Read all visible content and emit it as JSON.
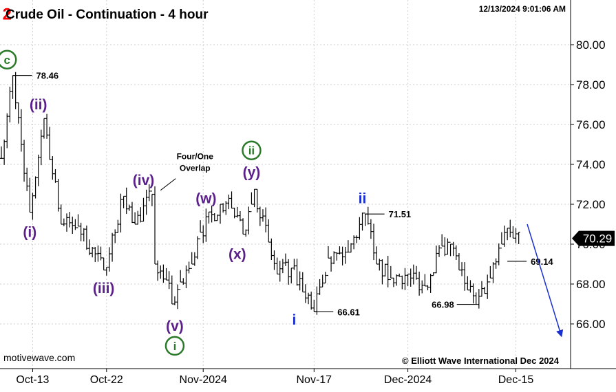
{
  "chart_data": {
    "type": "ohlc",
    "title": "Crude Oil - Continuation - 4 hour",
    "timestamp": "12/13/2024 9:01:06 AM",
    "watermark": "motivewave.com",
    "copyright": "© Elliott Wave International Dec 2024",
    "ylim": [
      64.2,
      81.6
    ],
    "grid": true,
    "y_ticks": [
      66,
      68,
      70,
      72,
      74,
      76,
      78,
      80
    ],
    "y_tick_labels": [
      "66.00",
      "68.00",
      "70.00",
      "72.00",
      "74.00",
      "76.00",
      "78.00",
      "80.00"
    ],
    "x_ticks": [
      {
        "label": "Oct-13",
        "bar": 11
      },
      {
        "label": "Oct-22",
        "bar": 37
      },
      {
        "label": "Nov-2024",
        "bar": 71
      },
      {
        "label": "Nov-17",
        "bar": 110
      },
      {
        "label": "Dec-2024",
        "bar": 143
      },
      {
        "label": "Dec-15",
        "bar": 181
      }
    ],
    "last_price": "70.29",
    "last_price_value": 70.29,
    "colors": {
      "bars": "#000000",
      "primary_wave": "#2a7a2a",
      "minor_wave": "#5a1f8a",
      "minute_wave": "#1a2fd0",
      "degree_two": "#ff0000",
      "forecast_arrow": "#1a2fd0"
    },
    "anchors": [
      {
        "bar": 0,
        "price": 74.3
      },
      {
        "bar": 4,
        "price": 78.46
      },
      {
        "bar": 10,
        "price": 71.6
      },
      {
        "bar": 15,
        "price": 76.3
      },
      {
        "bar": 21,
        "price": 71.0
      },
      {
        "bar": 27,
        "price": 70.9
      },
      {
        "bar": 36,
        "price": 68.7
      },
      {
        "bar": 43,
        "price": 72.4
      },
      {
        "bar": 47,
        "price": 71.0
      },
      {
        "bar": 53,
        "price": 72.5
      },
      {
        "bar": 54,
        "price": 69.0
      },
      {
        "bar": 58,
        "price": 68.2
      },
      {
        "bar": 60,
        "price": 67.0
      },
      {
        "bar": 63,
        "price": 68.1
      },
      {
        "bar": 67,
        "price": 69.0
      },
      {
        "bar": 70,
        "price": 70.6
      },
      {
        "bar": 77,
        "price": 72.0
      },
      {
        "bar": 81,
        "price": 71.8
      },
      {
        "bar": 85,
        "price": 70.5
      },
      {
        "bar": 88,
        "price": 72.0
      },
      {
        "bar": 89,
        "price": 72.75
      },
      {
        "bar": 94,
        "price": 70.1
      },
      {
        "bar": 97,
        "price": 68.5
      },
      {
        "bar": 102,
        "price": 68.8
      },
      {
        "bar": 106,
        "price": 67.6
      },
      {
        "bar": 110,
        "price": 66.61
      },
      {
        "bar": 115,
        "price": 69.3
      },
      {
        "bar": 122,
        "price": 69.6
      },
      {
        "bar": 128,
        "price": 71.51
      },
      {
        "bar": 132,
        "price": 69.0
      },
      {
        "bar": 137,
        "price": 68.3
      },
      {
        "bar": 143,
        "price": 68.5
      },
      {
        "bar": 149,
        "price": 67.9
      },
      {
        "bar": 155,
        "price": 69.9
      },
      {
        "bar": 158,
        "price": 70.0
      },
      {
        "bar": 161,
        "price": 68.7
      },
      {
        "bar": 164,
        "price": 67.7
      },
      {
        "bar": 167,
        "price": 66.98
      },
      {
        "bar": 172,
        "price": 68.3
      },
      {
        "bar": 176,
        "price": 70.0
      },
      {
        "bar": 178,
        "price": 70.8
      },
      {
        "bar": 180,
        "price": 70.3
      },
      {
        "bar": 182,
        "price": 70.6
      }
    ],
    "gaps": [
      {
        "after_bar": 55
      }
    ],
    "wave_labels": [
      {
        "text": "2",
        "style": "plain",
        "color": "degree_two",
        "bar": 2,
        "price": 81.5,
        "dx": 0,
        "dy": 0
      },
      {
        "text": "c",
        "style": "circle",
        "color": "primary_wave",
        "bar": 2,
        "price": 79.25,
        "dx": 0,
        "dy": 0
      },
      {
        "text": "(ii)",
        "style": "plain",
        "color": "minor_wave",
        "bar": 13,
        "price": 77.0,
        "dx": 0,
        "dy": 0
      },
      {
        "text": "(i)",
        "style": "plain",
        "color": "minor_wave",
        "bar": 10,
        "price": 70.6,
        "dx": 0,
        "dy": 0
      },
      {
        "text": "(iii)",
        "style": "plain",
        "color": "minor_wave",
        "bar": 36,
        "price": 67.8,
        "dx": 0,
        "dy": 0
      },
      {
        "text": "(iv)",
        "style": "plain",
        "color": "minor_wave",
        "bar": 50,
        "price": 73.2,
        "dx": 0,
        "dy": 0
      },
      {
        "text": "(v)",
        "style": "plain",
        "color": "minor_wave",
        "bar": 61,
        "price": 65.9,
        "dx": 0,
        "dy": 0
      },
      {
        "text": "i",
        "style": "circle",
        "color": "primary_wave",
        "bar": 61,
        "price": 64.9,
        "dx": 0,
        "dy": 0
      },
      {
        "text": "(w)",
        "style": "plain",
        "color": "minor_wave",
        "bar": 72,
        "price": 72.3,
        "dx": 0,
        "dy": 0
      },
      {
        "text": "(x)",
        "style": "plain",
        "color": "minor_wave",
        "bar": 83,
        "price": 69.5,
        "dx": 0,
        "dy": 0
      },
      {
        "text": "(y)",
        "style": "plain",
        "color": "minor_wave",
        "bar": 88,
        "price": 73.6,
        "dx": 0,
        "dy": 0
      },
      {
        "text": "ii",
        "style": "circle",
        "color": "primary_wave",
        "bar": 88,
        "price": 74.7,
        "dx": 0,
        "dy": 0
      },
      {
        "text": "i",
        "style": "plain",
        "color": "minute_wave",
        "bar": 103,
        "price": 66.2,
        "dx": 0,
        "dy": 0
      },
      {
        "text": "ii",
        "style": "plain",
        "color": "minute_wave",
        "bar": 127,
        "price": 72.3,
        "dx": 0,
        "dy": 0
      }
    ],
    "price_callouts": [
      {
        "text": "78.46",
        "bar": 4,
        "price": 78.46,
        "side": "right"
      },
      {
        "text": "66.61",
        "bar": 110,
        "price": 66.61,
        "side": "right"
      },
      {
        "text": "71.51",
        "bar": 128,
        "price": 71.51,
        "side": "right"
      },
      {
        "text": "66.98",
        "bar": 167,
        "price": 66.98,
        "side": "left"
      },
      {
        "text": "69.14",
        "bar": 178,
        "price": 69.14,
        "side": "right"
      }
    ],
    "annotation": {
      "lines": [
        "Four/One",
        "Overlap"
      ],
      "points_to": {
        "bar": 56,
        "price": 72.7
      }
    },
    "forecast_arrow": {
      "from": {
        "bar": 185,
        "price": 71.0
      },
      "to": {
        "bar": 197,
        "price": 65.4
      }
    }
  }
}
